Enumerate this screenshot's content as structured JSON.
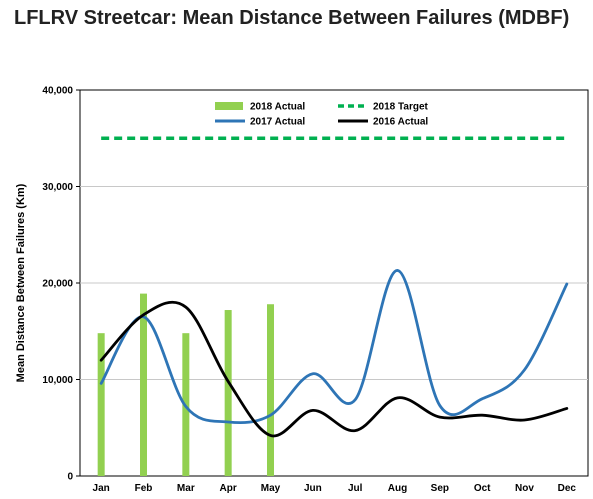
{
  "title": "LFLRV Streetcar: Mean Distance Between Failures (MDBF)",
  "chart_data": {
    "type": "bar",
    "title": "LFLRV Streetcar: Mean Distance Between Failures (MDBF)",
    "xlabel": "",
    "ylabel": "Mean Distance Between Failures (Km)",
    "ylim": [
      0,
      40000
    ],
    "yticks": [
      0,
      10000,
      20000,
      30000,
      40000
    ],
    "ytick_labels": [
      "0",
      "10,000",
      "20,000",
      "30,000",
      "40,000"
    ],
    "categories": [
      "Jan",
      "Feb",
      "Mar",
      "Apr",
      "May",
      "Jun",
      "Jul",
      "Aug",
      "Sep",
      "Oct",
      "Nov",
      "Dec"
    ],
    "grid": true,
    "legend_position": "top",
    "series": [
      {
        "name": "2018 Actual",
        "type": "bar",
        "color": "#92D050",
        "values": [
          14800,
          18900,
          14800,
          17200,
          17800,
          null,
          null,
          null,
          null,
          null,
          null,
          null
        ]
      },
      {
        "name": "2018 Target",
        "type": "line",
        "style": "dashed",
        "color": "#00B050",
        "values": [
          35000,
          35000,
          35000,
          35000,
          35000,
          35000,
          35000,
          35000,
          35000,
          35000,
          35000,
          35000
        ]
      },
      {
        "name": "2017 Actual",
        "type": "line",
        "color": "#2E75B6",
        "values": [
          9600,
          16500,
          7200,
          5600,
          6300,
          10600,
          7900,
          21300,
          7300,
          8000,
          11000,
          19900
        ]
      },
      {
        "name": "2016 Actual",
        "type": "line",
        "color": "#000000",
        "values": [
          12000,
          16700,
          17500,
          9800,
          4200,
          6800,
          4700,
          8100,
          6100,
          6300,
          5800,
          7000
        ]
      }
    ]
  }
}
